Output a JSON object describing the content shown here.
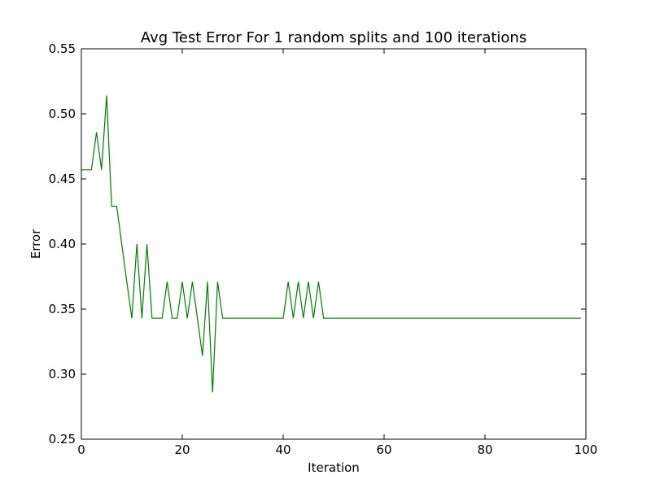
{
  "chart_data": {
    "type": "line",
    "title": "Avg Test Error For 1 random splits and 100 iterations",
    "xlabel": "Iteration",
    "ylabel": "Error",
    "xlim": [
      0,
      100
    ],
    "ylim": [
      0.25,
      0.55
    ],
    "x_ticks": [
      0,
      20,
      40,
      60,
      80,
      100
    ],
    "x_tick_labels": [
      "0",
      "20",
      "40",
      "60",
      "80",
      "100"
    ],
    "y_ticks": [
      0.25,
      0.3,
      0.35,
      0.4,
      0.45,
      0.5,
      0.55
    ],
    "y_tick_labels": [
      "0.25",
      "0.30",
      "0.35",
      "0.40",
      "0.45",
      "0.50",
      "0.55"
    ],
    "grid": false,
    "series": [
      {
        "color": "#008000",
        "x": [
          0,
          1,
          2,
          3,
          4,
          5,
          6,
          7,
          8,
          9,
          10,
          11,
          12,
          13,
          14,
          15,
          16,
          17,
          18,
          19,
          20,
          21,
          22,
          23,
          24,
          25,
          26,
          27,
          28,
          29,
          30,
          31,
          32,
          33,
          34,
          35,
          36,
          37,
          38,
          39,
          40,
          41,
          42,
          43,
          44,
          45,
          46,
          47,
          48,
          49,
          50,
          51,
          52,
          53,
          54,
          55,
          56,
          57,
          58,
          59,
          60,
          61,
          62,
          63,
          64,
          65,
          66,
          67,
          68,
          69,
          70,
          71,
          72,
          73,
          74,
          75,
          76,
          77,
          78,
          79,
          80,
          81,
          82,
          83,
          84,
          85,
          86,
          87,
          88,
          89,
          90,
          91,
          92,
          93,
          94,
          95,
          96,
          97,
          98,
          99
        ],
        "y": [
          0.457,
          0.457,
          0.457,
          0.486,
          0.457,
          0.514,
          0.429,
          0.429,
          0.4,
          0.371,
          0.343,
          0.4,
          0.343,
          0.4,
          0.343,
          0.343,
          0.343,
          0.371,
          0.343,
          0.343,
          0.371,
          0.343,
          0.371,
          0.343,
          0.314,
          0.371,
          0.286,
          0.371,
          0.343,
          0.343,
          0.343,
          0.343,
          0.343,
          0.343,
          0.343,
          0.343,
          0.343,
          0.343,
          0.343,
          0.343,
          0.343,
          0.371,
          0.343,
          0.371,
          0.343,
          0.371,
          0.343,
          0.371,
          0.343,
          0.343,
          0.343,
          0.343,
          0.343,
          0.343,
          0.343,
          0.343,
          0.343,
          0.343,
          0.343,
          0.343,
          0.343,
          0.343,
          0.343,
          0.343,
          0.343,
          0.343,
          0.343,
          0.343,
          0.343,
          0.343,
          0.343,
          0.343,
          0.343,
          0.343,
          0.343,
          0.343,
          0.343,
          0.343,
          0.343,
          0.343,
          0.343,
          0.343,
          0.343,
          0.343,
          0.343,
          0.343,
          0.343,
          0.343,
          0.343,
          0.343,
          0.343,
          0.343,
          0.343,
          0.343,
          0.343,
          0.343,
          0.343,
          0.343,
          0.343,
          0.343
        ]
      }
    ]
  }
}
